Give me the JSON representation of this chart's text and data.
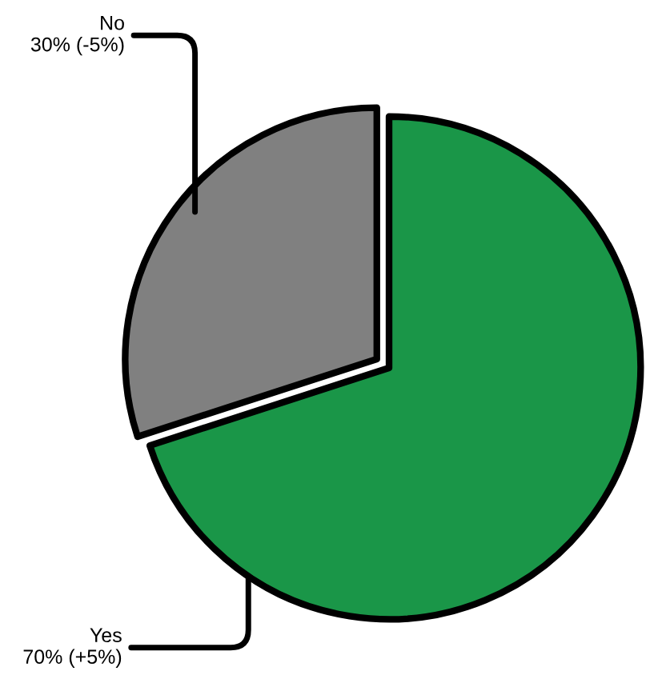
{
  "chart_data": {
    "type": "pie",
    "categories": [
      "Yes",
      "No"
    ],
    "values": [
      70,
      30
    ],
    "colors": [
      "#1a9648",
      "#808080"
    ],
    "value_labels": [
      "70% (+5%)",
      "30% (-5%)"
    ]
  }
}
